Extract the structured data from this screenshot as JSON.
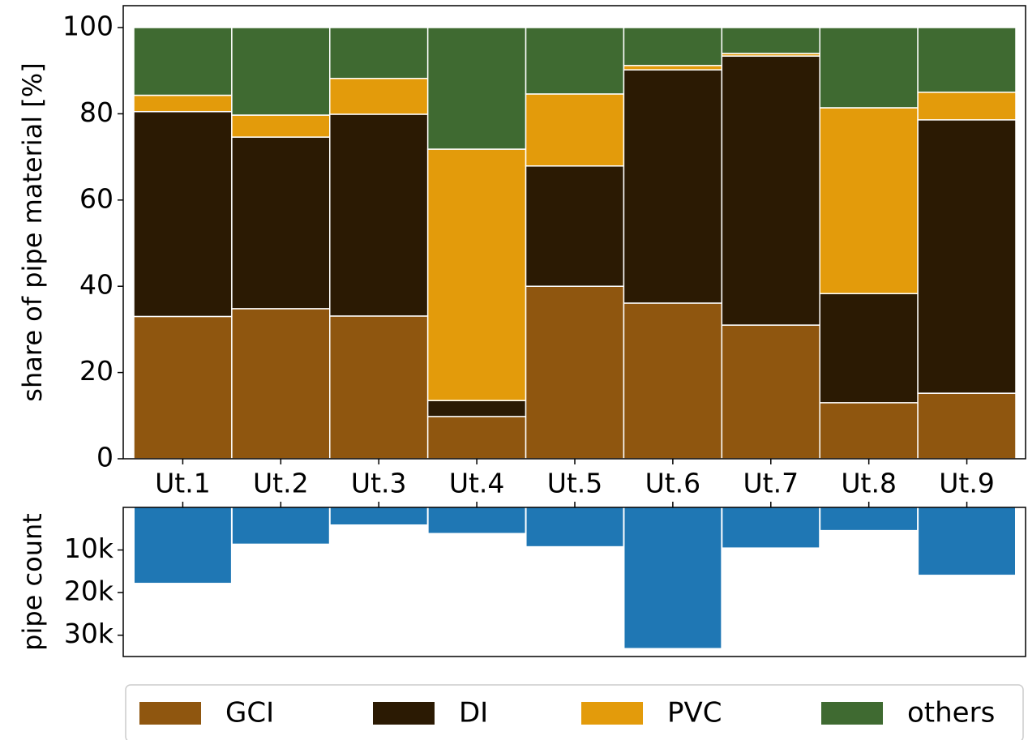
{
  "chart_data": [
    {
      "type": "stacked_bar",
      "categories": [
        "Ut.1",
        "Ut.2",
        "Ut.3",
        "Ut.4",
        "Ut.5",
        "Ut.6",
        "Ut.7",
        "Ut.8",
        "Ut.9"
      ],
      "series": [
        {
          "name": "GCI",
          "color": "#8f560f",
          "values": [
            33.0,
            34.8,
            33.1,
            9.8,
            40.0,
            36.1,
            31.0,
            13.0,
            15.2
          ]
        },
        {
          "name": "DI",
          "color": "#2b1a03",
          "values": [
            47.5,
            39.8,
            46.8,
            3.7,
            27.9,
            54.1,
            62.4,
            25.3,
            63.4
          ]
        },
        {
          "name": "PVC",
          "color": "#e39b0b",
          "values": [
            3.8,
            5.1,
            8.3,
            58.3,
            16.7,
            1.0,
            0.6,
            43.1,
            6.4
          ]
        },
        {
          "name": "others",
          "color": "#3f6a31",
          "values": [
            15.7,
            20.3,
            11.8,
            28.2,
            15.4,
            8.8,
            6.0,
            18.6,
            15.0
          ]
        }
      ],
      "ylabel": "share of pipe material [%]",
      "ylim": [
        0,
        100
      ],
      "yticks": [
        0,
        20,
        40,
        60,
        80,
        100
      ],
      "legend": "bottom"
    },
    {
      "type": "bar",
      "values": [
        17700,
        8500,
        4000,
        6000,
        9100,
        33000,
        9400,
        5300,
        15800
      ],
      "color": "#1f77b4",
      "ylabel": "pipe count",
      "ylim": [
        0,
        35000
      ],
      "yticks": [
        {
          "value": 10000,
          "label": "10k"
        },
        {
          "value": 20000,
          "label": "20k"
        },
        {
          "value": 30000,
          "label": "30k"
        }
      ],
      "invert_y": true
    }
  ]
}
